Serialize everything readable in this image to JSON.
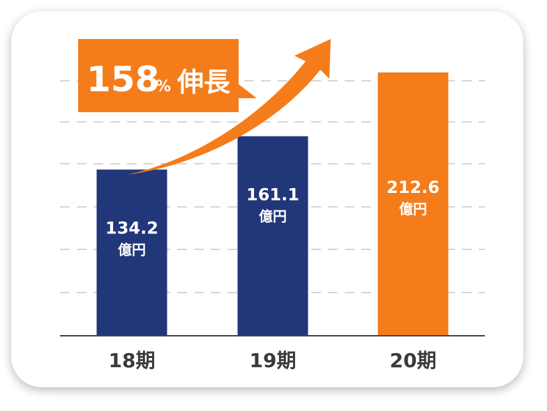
{
  "chart_data": {
    "type": "bar",
    "categories": [
      "18期",
      "19期",
      "20期"
    ],
    "values": [
      134.2,
      161.1,
      212.6
    ],
    "unit": "億円",
    "value_labels": [
      "134.2",
      "161.1",
      "212.6"
    ],
    "ylim": [
      0,
      230
    ],
    "grid": true,
    "colors": [
      "#22367a",
      "#22367a",
      "#f47c1a"
    ],
    "callout": {
      "number": "158",
      "percent": "%",
      "text": "伸長",
      "color": "#f47c1a"
    }
  }
}
